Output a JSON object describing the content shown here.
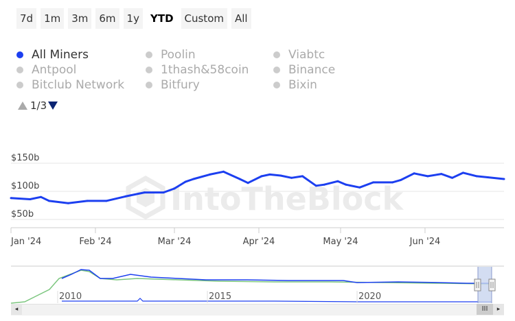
{
  "ranges": [
    {
      "label": "7d"
    },
    {
      "label": "1m"
    },
    {
      "label": "3m"
    },
    {
      "label": "6m"
    },
    {
      "label": "1y"
    },
    {
      "label": "YTD",
      "active": true
    },
    {
      "label": "Custom"
    },
    {
      "label": "All"
    }
  ],
  "legend": [
    {
      "label": "All Miners",
      "active": true
    },
    {
      "label": "Poolin"
    },
    {
      "label": "Viabtc"
    },
    {
      "label": "Antpool"
    },
    {
      "label": "1thash&58coin"
    },
    {
      "label": "Binance"
    },
    {
      "label": "Bitclub Network"
    },
    {
      "label": "Bitfury"
    },
    {
      "label": "Bixin"
    }
  ],
  "pager": {
    "text": "1/3"
  },
  "watermark": "IntoTheBlock",
  "colors": {
    "line": "#1c3ff0",
    "nav_green": "#7bc67e",
    "nav_blue": "#1c3ff0",
    "grid": "#e6e6e6",
    "watermark": "#ebebeb"
  },
  "chart_data": {
    "type": "line",
    "title": "",
    "xlabel": "",
    "ylabel": "",
    "y_ticks": [
      "$50b",
      "$100b",
      "$150b"
    ],
    "ylim": [
      50,
      155
    ],
    "x_ticks": [
      "Jan '24",
      "Feb '24",
      "Mar '24",
      "Apr '24",
      "May '24",
      "Jun '24"
    ],
    "grid": true,
    "series": [
      {
        "x": [
          "2024-01-01",
          "2024-01-08",
          "2024-01-12",
          "2024-01-15",
          "2024-01-22",
          "2024-01-29",
          "2024-02-05",
          "2024-02-12",
          "2024-02-19",
          "2024-02-26",
          "2024-03-01",
          "2024-03-05",
          "2024-03-08",
          "2024-03-14",
          "2024-03-19",
          "2024-03-25",
          "2024-03-28",
          "2024-04-02",
          "2024-04-05",
          "2024-04-09",
          "2024-04-13",
          "2024-04-17",
          "2024-04-22",
          "2024-04-25",
          "2024-04-30",
          "2024-05-03",
          "2024-05-08",
          "2024-05-13",
          "2024-05-20",
          "2024-05-23",
          "2024-05-28",
          "2024-06-02",
          "2024-06-07",
          "2024-06-11",
          "2024-06-15",
          "2024-06-20",
          "2024-06-24",
          "2024-06-30"
        ],
        "values": [
          88,
          86,
          90,
          83,
          79,
          83,
          83,
          91,
          98,
          98,
          105,
          117,
          122,
          130,
          135,
          122,
          115,
          127,
          130,
          128,
          124,
          127,
          110,
          112,
          118,
          112,
          107,
          116,
          116,
          120,
          132,
          127,
          131,
          124,
          133,
          127,
          125,
          122
        ]
      }
    ]
  },
  "navigator": {
    "year_labels": [
      "2010",
      "2015",
      "2020"
    ]
  },
  "scrollbar": {
    "left_arrow": "◂",
    "right_arrow": "▸",
    "thumb": "III"
  }
}
